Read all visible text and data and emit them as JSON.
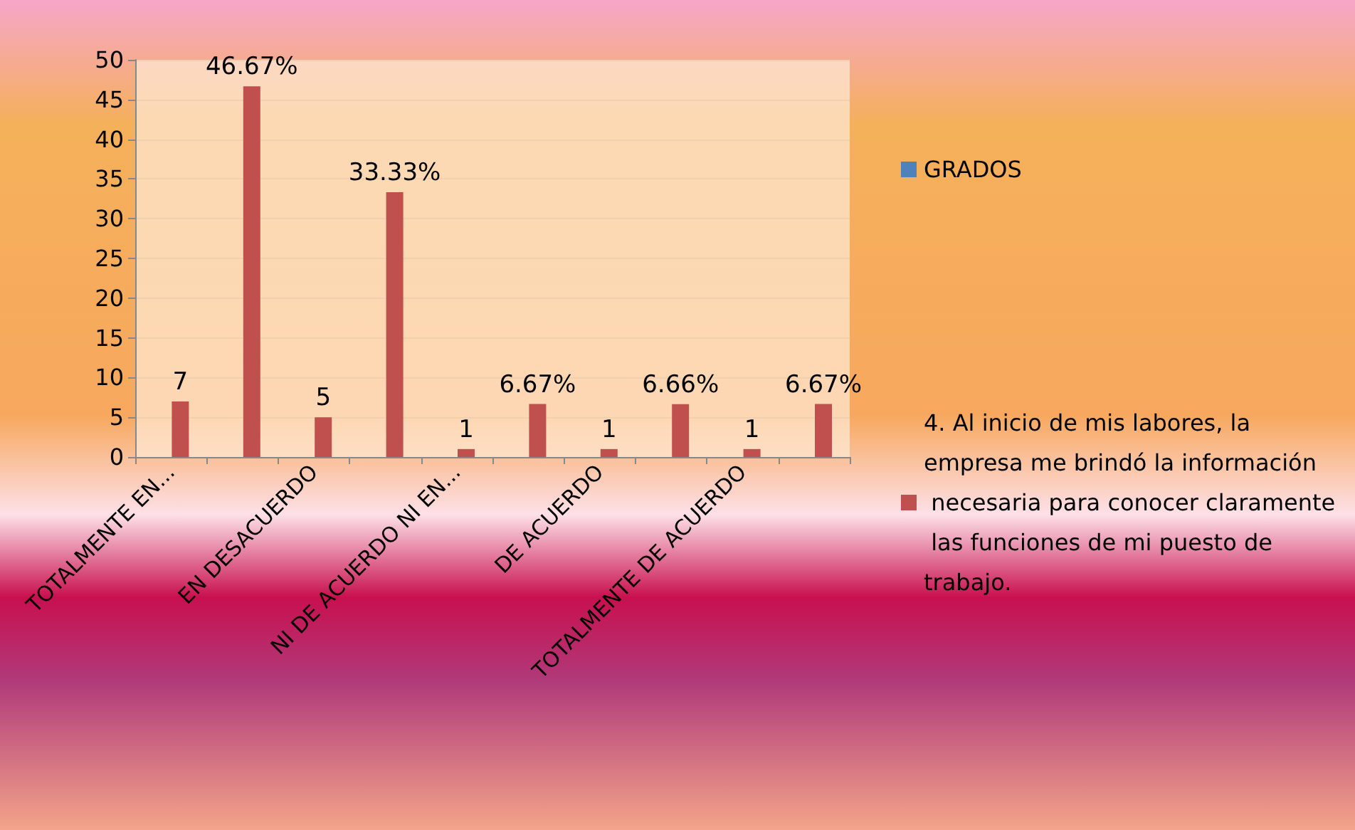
{
  "chart_data": {
    "type": "bar",
    "categories": [
      "TOTALMENTE EN...",
      null,
      "EN DESACUERDO",
      null,
      "NI DE ACUERDO NI EN...",
      null,
      "DE ACUERDO",
      null,
      "TOTALMENTE DE ACUERDO",
      null
    ],
    "series": [
      {
        "name": "GRADOS",
        "color": "#4f81bd",
        "values": [
          null,
          null,
          null,
          null,
          null,
          null,
          null,
          null,
          null,
          null
        ]
      },
      {
        "name": "4. Al inicio de mis labores, la empresa me brindó la información necesaria para conocer claramente las funciones de mi puesto de trabajo.",
        "color": "#c0504d",
        "values": [
          7,
          46.67,
          5,
          33.33,
          1,
          6.67,
          1,
          6.66,
          1,
          6.67
        ],
        "value_labels": [
          "7",
          "46.67%",
          "5",
          "33.33%",
          "1",
          "6.67%",
          "1",
          "6.66%",
          "1",
          "6.67%"
        ]
      }
    ],
    "ylim": [
      0,
      50
    ],
    "yticks": [
      0,
      5,
      10,
      15,
      20,
      25,
      30,
      35,
      40,
      45,
      50
    ],
    "grid": "y",
    "legend": "right"
  }
}
